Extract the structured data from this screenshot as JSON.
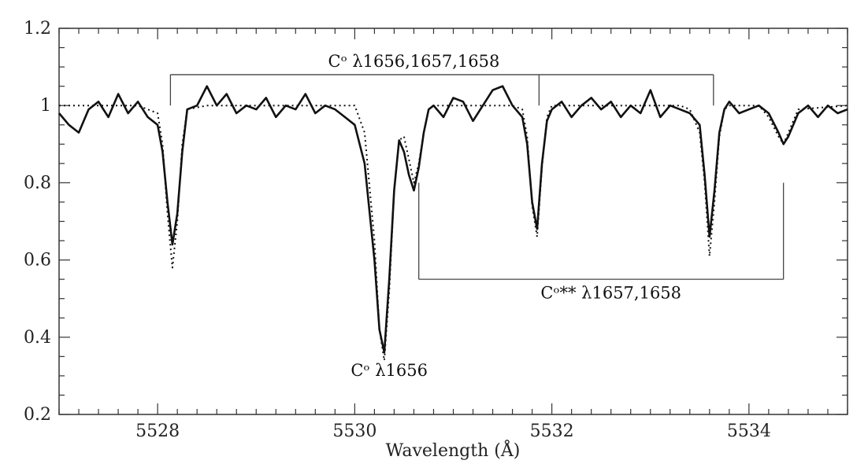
{
  "chart_data": {
    "type": "line",
    "xlabel": "Wavelength (Å)",
    "ylabel": "",
    "xlim": [
      5527.0,
      5535.0
    ],
    "ylim": [
      0.2,
      1.2
    ],
    "x_ticks": [
      {
        "value": 5528,
        "label": "5528"
      },
      {
        "value": 5530,
        "label": "5530"
      },
      {
        "value": 5532,
        "label": "5532"
      },
      {
        "value": 5534,
        "label": "5534"
      }
    ],
    "y_ticks": [
      {
        "value": 0.2,
        "label": "0.2"
      },
      {
        "value": 0.4,
        "label": "0.4"
      },
      {
        "value": 0.6,
        "label": "0.6"
      },
      {
        "value": 0.8,
        "label": "0.8"
      },
      {
        "value": 1.0,
        "label": "1"
      },
      {
        "value": 1.2,
        "label": "1.2"
      }
    ],
    "grid": false,
    "series": [
      {
        "style": "solid",
        "x": [
          5527.0,
          5527.1,
          5527.2,
          5527.3,
          5527.4,
          5527.5,
          5527.6,
          5527.7,
          5527.8,
          5527.9,
          5528.0,
          5528.05,
          5528.1,
          5528.15,
          5528.2,
          5528.25,
          5528.3,
          5528.4,
          5528.5,
          5528.6,
          5528.7,
          5528.8,
          5528.9,
          5529.0,
          5529.1,
          5529.2,
          5529.3,
          5529.4,
          5529.5,
          5529.6,
          5529.7,
          5529.8,
          5529.9,
          5530.0,
          5530.1,
          5530.2,
          5530.25,
          5530.3,
          5530.35,
          5530.4,
          5530.45,
          5530.5,
          5530.55,
          5530.6,
          5530.65,
          5530.7,
          5530.75,
          5530.8,
          5530.9,
          5531.0,
          5531.1,
          5531.2,
          5531.3,
          5531.4,
          5531.5,
          5531.6,
          5531.7,
          5531.75,
          5531.8,
          5531.85,
          5531.9,
          5531.95,
          5532.0,
          5532.1,
          5532.2,
          5532.3,
          5532.4,
          5532.5,
          5532.6,
          5532.7,
          5532.8,
          5532.9,
          5533.0,
          5533.1,
          5533.2,
          5533.3,
          5533.4,
          5533.5,
          5533.55,
          5533.6,
          5533.65,
          5533.7,
          5533.75,
          5533.8,
          5533.9,
          5534.0,
          5534.1,
          5534.2,
          5534.3,
          5534.35,
          5534.4,
          5534.5,
          5534.6,
          5534.7,
          5534.8,
          5534.9,
          5535.0
        ],
        "y": [
          0.98,
          0.95,
          0.93,
          0.99,
          1.01,
          0.97,
          1.03,
          0.98,
          1.01,
          0.97,
          0.95,
          0.88,
          0.75,
          0.64,
          0.72,
          0.88,
          0.99,
          1.0,
          1.05,
          1.0,
          1.03,
          0.98,
          1.0,
          0.99,
          1.02,
          0.97,
          1.0,
          0.99,
          1.03,
          0.98,
          1.0,
          0.99,
          0.97,
          0.95,
          0.85,
          0.6,
          0.42,
          0.36,
          0.55,
          0.78,
          0.91,
          0.88,
          0.82,
          0.78,
          0.84,
          0.93,
          0.99,
          1.0,
          0.97,
          1.02,
          1.01,
          0.96,
          1.0,
          1.04,
          1.05,
          1.0,
          0.97,
          0.9,
          0.75,
          0.68,
          0.85,
          0.96,
          0.99,
          1.01,
          0.97,
          1.0,
          1.02,
          0.99,
          1.01,
          0.97,
          1.0,
          0.98,
          1.04,
          0.97,
          1.0,
          0.99,
          0.98,
          0.95,
          0.82,
          0.66,
          0.78,
          0.93,
          0.99,
          1.01,
          0.98,
          0.99,
          1.0,
          0.98,
          0.93,
          0.9,
          0.92,
          0.98,
          1.0,
          0.97,
          1.0,
          0.98,
          0.99
        ]
      },
      {
        "style": "dotted",
        "x": [
          5527.0,
          5527.8,
          5528.0,
          5528.05,
          5528.1,
          5528.15,
          5528.2,
          5528.25,
          5528.3,
          5528.5,
          5530.0,
          5530.1,
          5530.2,
          5530.25,
          5530.3,
          5530.35,
          5530.4,
          5530.45,
          5530.5,
          5530.55,
          5530.6,
          5530.65,
          5530.7,
          5530.75,
          5530.8,
          5531.6,
          5531.7,
          5531.75,
          5531.8,
          5531.85,
          5531.9,
          5531.95,
          5532.0,
          5533.3,
          5533.4,
          5533.5,
          5533.55,
          5533.6,
          5533.65,
          5533.7,
          5533.75,
          5533.8,
          5534.1,
          5534.2,
          5534.3,
          5534.35,
          5534.4,
          5534.5,
          5535.0
        ],
        "y": [
          1.0,
          1.0,
          0.98,
          0.9,
          0.72,
          0.58,
          0.7,
          0.9,
          0.99,
          1.0,
          1.0,
          0.93,
          0.65,
          0.42,
          0.34,
          0.52,
          0.78,
          0.91,
          0.92,
          0.86,
          0.8,
          0.85,
          0.93,
          0.99,
          1.0,
          1.0,
          0.99,
          0.92,
          0.74,
          0.66,
          0.84,
          0.97,
          1.0,
          1.0,
          0.99,
          0.93,
          0.8,
          0.61,
          0.75,
          0.92,
          0.99,
          1.0,
          1.0,
          0.97,
          0.92,
          0.9,
          0.93,
          0.99,
          1.0
        ]
      }
    ],
    "annotations": [
      {
        "id": "c-all",
        "text": "Cᵒ λ1656,1657,1658",
        "bracket": {
          "y": 1.08,
          "x_left": 5528.13,
          "x_right": 5533.64,
          "ticks": [
            5528.13,
            5531.87,
            5533.64
          ],
          "tick_to": 1.0,
          "side": "top"
        },
        "label_x": 5530.6,
        "label_y": 1.1
      },
      {
        "id": "c-star",
        "text": "Cᵒ** λ1657,1658",
        "bracket": {
          "y": 0.55,
          "x_left": 5530.65,
          "x_right": 5534.35,
          "ticks": [
            5530.65,
            5534.35
          ],
          "tick_to": 0.8,
          "side": "bottom"
        },
        "label_x": 5532.6,
        "label_y": 0.5
      },
      {
        "id": "c-1656",
        "text": "Cᵒ λ1656",
        "label_x": 5530.35,
        "label_y": 0.3
      }
    ]
  }
}
